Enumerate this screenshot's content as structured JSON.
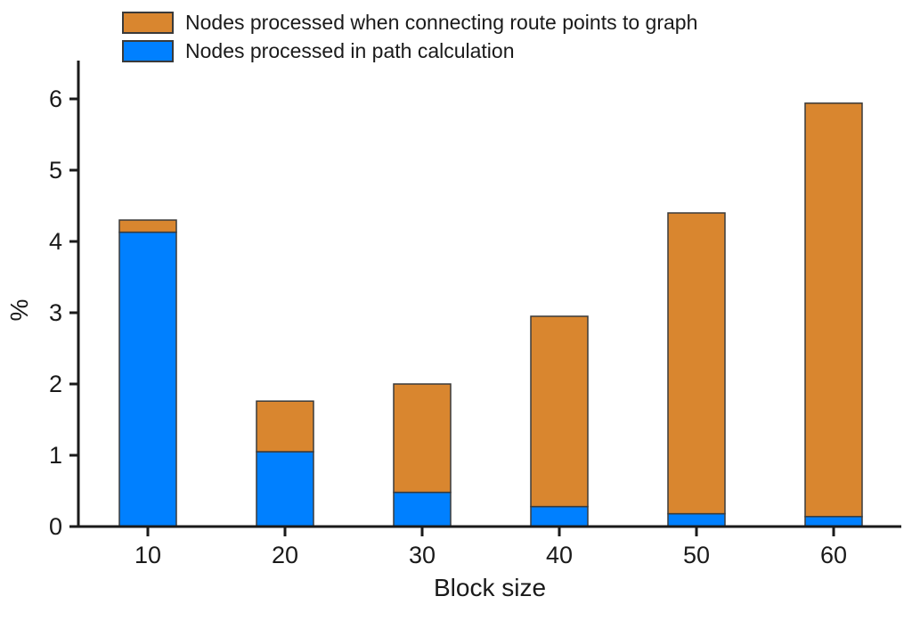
{
  "chart_data": {
    "type": "bar",
    "stacked": true,
    "title": "",
    "xlabel": "Block size",
    "ylabel": "%",
    "categories": [
      "10",
      "20",
      "30",
      "40",
      "50",
      "60"
    ],
    "series": [
      {
        "name": "Nodes processed in path calculation",
        "color": "#0080ff",
        "values": [
          4.13,
          1.05,
          0.48,
          0.28,
          0.18,
          0.14
        ]
      },
      {
        "name": "Nodes processed when connecting route points to graph",
        "color": "#d9862f",
        "values": [
          0.17,
          0.71,
          1.52,
          2.67,
          4.22,
          5.8
        ]
      }
    ],
    "stack_totals": [
      4.3,
      1.76,
      2.0,
      2.95,
      4.4,
      5.94
    ],
    "ylim": [
      0,
      6.5
    ],
    "yticks": [
      "0",
      "1",
      "2",
      "3",
      "4",
      "5",
      "6"
    ],
    "grid": false,
    "legend_position": "top-left",
    "bar_border_color": "#3a3a3a",
    "axis_color": "#1a1a1a"
  }
}
